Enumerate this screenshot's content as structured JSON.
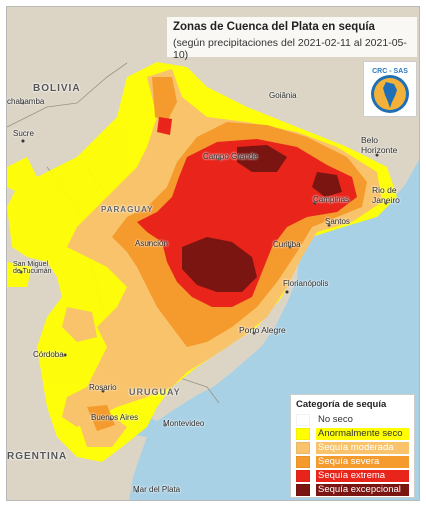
{
  "title": "Zonas de Cuenca del Plata en sequía",
  "subtitle": "(según precipitaciones del 2021-02-11 al 2021-05-10)",
  "logo": {
    "text": "CRC - SAS",
    "icon": "south-america-globe-icon"
  },
  "legend": {
    "title": "Categoría de sequía",
    "items": [
      {
        "label": "No seco",
        "color": "#ffffff",
        "text_color": "#333333"
      },
      {
        "label": "Anormalmente seco",
        "color": "#ffff00",
        "text_color": "#333333"
      },
      {
        "label": "Sequía moderada",
        "color": "#f8c36b",
        "text_color": "#ffffff"
      },
      {
        "label": "Sequía severa",
        "color": "#f59a2d",
        "text_color": "#ffffff"
      },
      {
        "label": "Sequía extrema",
        "color": "#e8241b",
        "text_color": "#ffffff"
      },
      {
        "label": "Sequía excepcional",
        "color": "#7a1512",
        "text_color": "#ffffff"
      }
    ]
  },
  "places": {
    "bolivia": "BOLIVIA",
    "paraguay": "PARAGUAY",
    "uruguay": "URUGUAY",
    "argentina": "RGENTINA",
    "cochabamba": "chabamba",
    "sucre": "Sucre",
    "goiania": "Goiânia",
    "campo_grande": "Campo Grande",
    "belo_horizonte": "Belo\nHorizonte",
    "rio": "Rio de\nJaneiro",
    "campinas": "Campinas",
    "santos": "Santos",
    "asuncion": "Asunción",
    "curitiba": "Curitiba",
    "san_miguel": "San Miguel\nde Tucumán",
    "florianopolis": "Florianópolis",
    "porto_alegre": "Porto Alegre",
    "cordoba": "Córdoba",
    "rosario": "Rosario",
    "buenos_aires": "Buenos Aires",
    "montevideo": "Montevideo",
    "mar_del_plata": "Mar del Plata"
  },
  "colors": {
    "land": "#dcd5c6",
    "ocean": "#a9d1e6",
    "abnormal": "#ffff00",
    "moderate": "#f8c36b",
    "severe": "#f59a2d",
    "extreme": "#e8241b",
    "exceptional": "#7a1512"
  }
}
